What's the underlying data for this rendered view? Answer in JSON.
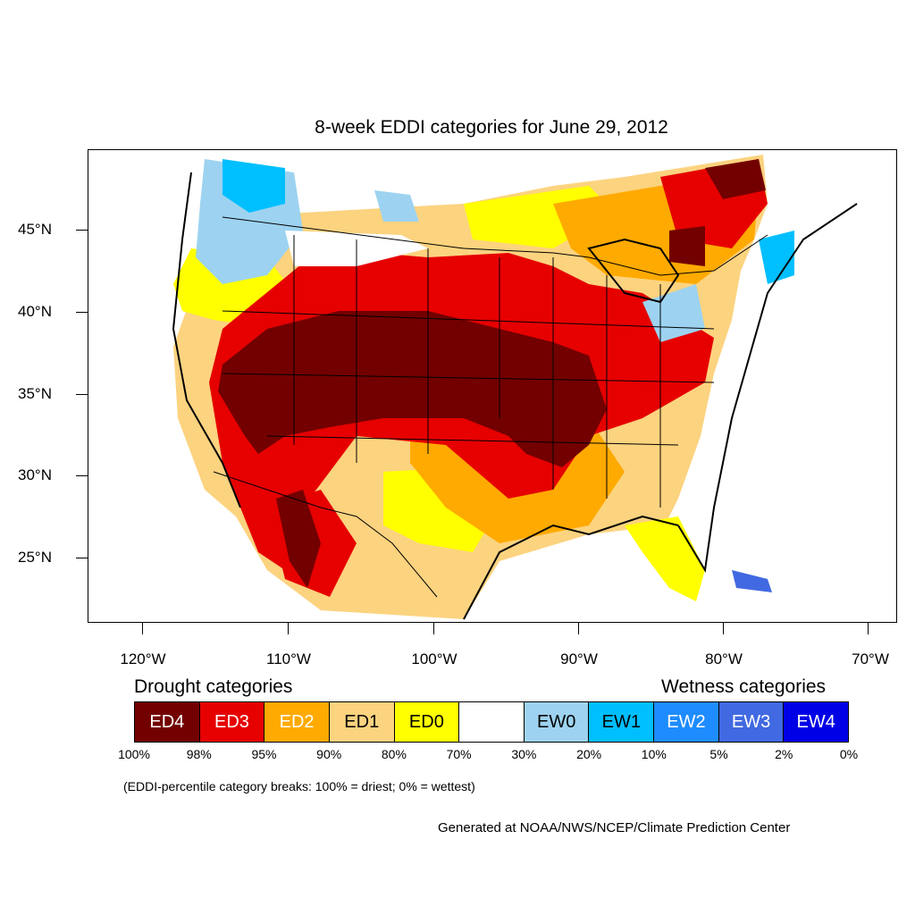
{
  "title": "8-week EDDI categories for June 29, 2012",
  "lat_labels": [
    "45°N",
    "40°N",
    "35°N",
    "30°N",
    "25°N"
  ],
  "lon_labels": [
    "120°W",
    "110°W",
    "100°W",
    "90°W",
    "80°W",
    "70°W"
  ],
  "legend": {
    "drought_heading": "Drought categories",
    "wetness_heading": "Wetness categories",
    "categories": [
      {
        "label": "ED4",
        "color": "#730000",
        "text_color": "#ffffff"
      },
      {
        "label": "ED3",
        "color": "#e60000",
        "text_color": "#ffffff"
      },
      {
        "label": "ED2",
        "color": "#ffaa00",
        "text_color": "#ffffff"
      },
      {
        "label": "ED1",
        "color": "#fcd37f",
        "text_color": "#000000"
      },
      {
        "label": "ED0",
        "color": "#ffff00",
        "text_color": "#000000"
      },
      {
        "label": "",
        "color": "#ffffff",
        "text_color": "#000000"
      },
      {
        "label": "EW0",
        "color": "#9dd3f0",
        "text_color": "#000000"
      },
      {
        "label": "EW1",
        "color": "#00bfff",
        "text_color": "#000000"
      },
      {
        "label": "EW2",
        "color": "#1e8cff",
        "text_color": "#ffffff"
      },
      {
        "label": "EW3",
        "color": "#4169e1",
        "text_color": "#ffffff"
      },
      {
        "label": "EW4",
        "color": "#0000e6",
        "text_color": "#ffffff"
      }
    ],
    "breaks": [
      "100%",
      "98%",
      "95%",
      "90%",
      "80%",
      "70%",
      "30%",
      "20%",
      "10%",
      "5%",
      "2%",
      "0%"
    ]
  },
  "note": "(EDDI-percentile category breaks: 100% = driest; 0% = wettest)",
  "credit": "Generated at NOAA/NWS/NCEP/Climate Prediction Center",
  "colors": {
    "ed4": "#730000",
    "ed3": "#e60000",
    "ed2": "#ffaa00",
    "ed1": "#fcd37f",
    "ed0": "#ffff00",
    "ew0": "#9dd3f0",
    "ew1": "#00bfff",
    "ew2": "#1e8cff",
    "ew3": "#4169e1",
    "ew4": "#0000e6"
  }
}
